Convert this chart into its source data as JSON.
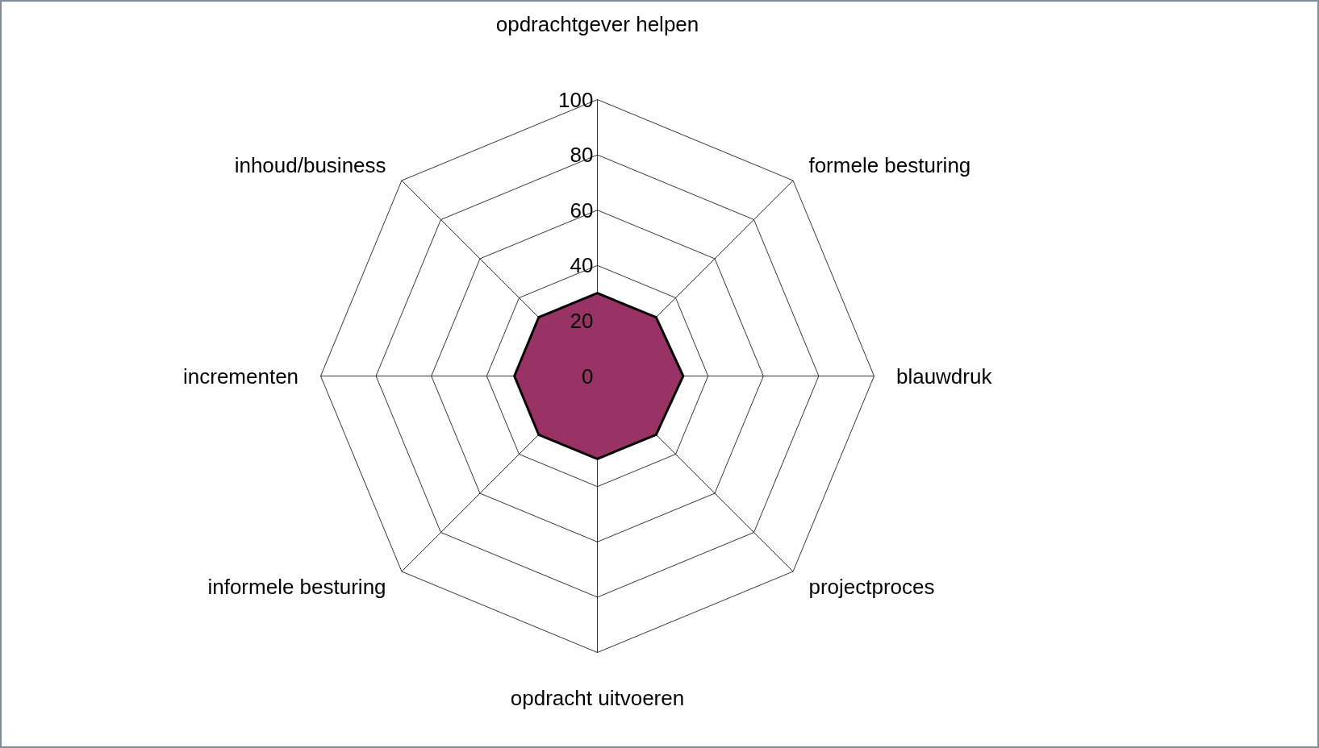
{
  "chart_data": {
    "type": "radar",
    "categories": [
      "opdrachtgever helpen",
      "formele besturing",
      "blauwdruk",
      "projectproces",
      "opdracht uitvoeren",
      "informele besturing",
      "incrementen",
      "inhoud/business"
    ],
    "series": [
      {
        "color": "#993366",
        "values": [
          30,
          30,
          31,
          30,
          30,
          30,
          30,
          30
        ]
      }
    ],
    "ylim": [
      0,
      100
    ],
    "yticks": [
      0,
      20,
      40,
      60,
      80,
      100
    ],
    "grid": true
  }
}
